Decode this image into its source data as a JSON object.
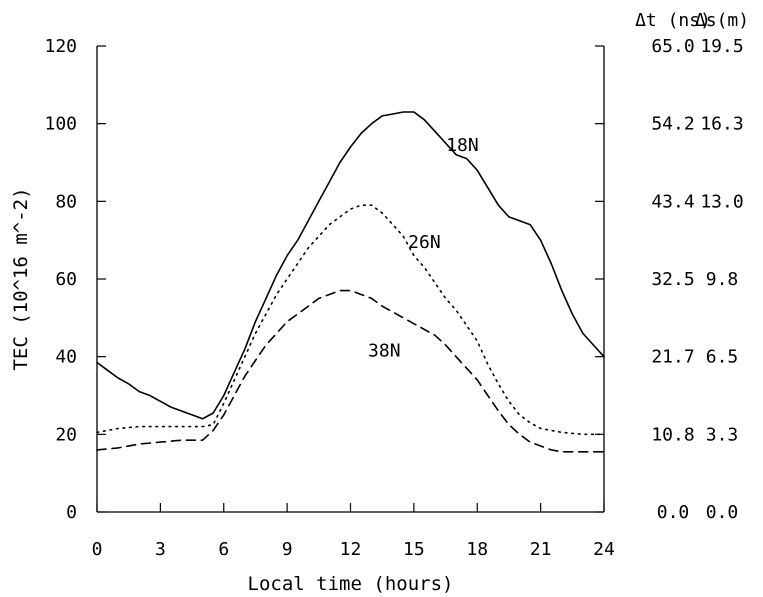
{
  "chart_data": {
    "type": "line",
    "title": "",
    "xlabel": "Local time (hours)",
    "ylabel": "TEC (10^16 m^-2)",
    "xlim": [
      0,
      24
    ],
    "ylim": [
      0,
      120
    ],
    "x_ticks": [
      0,
      3,
      6,
      9,
      12,
      15,
      18,
      21,
      24
    ],
    "y_ticks": [
      0,
      20,
      40,
      60,
      80,
      100,
      120
    ],
    "right_axes": [
      {
        "header": "Δt (ns)",
        "labels": [
          "0.0",
          "10.8",
          "21.7",
          "32.5",
          "43.4",
          "54.2",
          "65.0"
        ]
      },
      {
        "header": "Δs(m)",
        "labels": [
          "0.0",
          "3.3",
          "6.5",
          "9.8",
          "13.0",
          "16.3",
          "19.5"
        ]
      }
    ],
    "grid": false,
    "legend": "none",
    "series": [
      {
        "name": "18N",
        "style": "solid",
        "points": [
          [
            0,
            38.5
          ],
          [
            0.5,
            36.5
          ],
          [
            1,
            34.5
          ],
          [
            1.5,
            33
          ],
          [
            2,
            31
          ],
          [
            2.5,
            30
          ],
          [
            3,
            28.5
          ],
          [
            3.5,
            27
          ],
          [
            4,
            26
          ],
          [
            4.5,
            25
          ],
          [
            5,
            24
          ],
          [
            5.5,
            25.5
          ],
          [
            6,
            30
          ],
          [
            6.5,
            36
          ],
          [
            7,
            42
          ],
          [
            7.5,
            49
          ],
          [
            8,
            55
          ],
          [
            8.5,
            61
          ],
          [
            9,
            66
          ],
          [
            9.5,
            70
          ],
          [
            10,
            75
          ],
          [
            10.5,
            80
          ],
          [
            11,
            85
          ],
          [
            11.5,
            90
          ],
          [
            12,
            94
          ],
          [
            12.5,
            97.5
          ],
          [
            13,
            100
          ],
          [
            13.5,
            102
          ],
          [
            14,
            102.5
          ],
          [
            14.5,
            103
          ],
          [
            15,
            103
          ],
          [
            15.5,
            101
          ],
          [
            16,
            98
          ],
          [
            16.5,
            95
          ],
          [
            17,
            92
          ],
          [
            17.5,
            91
          ],
          [
            18,
            88
          ],
          [
            18.5,
            83.5
          ],
          [
            19,
            79
          ],
          [
            19.5,
            76
          ],
          [
            20,
            75
          ],
          [
            20.5,
            74
          ],
          [
            21,
            70
          ],
          [
            21.5,
            64
          ],
          [
            22,
            57
          ],
          [
            22.5,
            51
          ],
          [
            23,
            46
          ],
          [
            23.5,
            43
          ],
          [
            24,
            40
          ]
        ]
      },
      {
        "name": "26N",
        "style": "dotted",
        "points": [
          [
            0,
            20.5
          ],
          [
            1,
            21.5
          ],
          [
            2,
            22
          ],
          [
            3,
            22
          ],
          [
            4,
            22
          ],
          [
            5,
            22
          ],
          [
            5.5,
            22.5
          ],
          [
            6,
            28
          ],
          [
            6.5,
            34
          ],
          [
            7,
            40
          ],
          [
            7.5,
            46
          ],
          [
            8,
            51
          ],
          [
            8.5,
            56
          ],
          [
            9,
            60
          ],
          [
            9.5,
            64
          ],
          [
            10,
            68
          ],
          [
            10.5,
            71
          ],
          [
            11,
            74
          ],
          [
            11.5,
            76
          ],
          [
            12,
            78
          ],
          [
            12.5,
            79
          ],
          [
            13,
            79
          ],
          [
            13.5,
            77
          ],
          [
            14,
            74
          ],
          [
            14.5,
            71
          ],
          [
            15,
            66
          ],
          [
            15.5,
            63
          ],
          [
            16,
            59
          ],
          [
            16.5,
            55
          ],
          [
            17,
            52
          ],
          [
            17.5,
            48
          ],
          [
            18,
            44
          ],
          [
            18.5,
            38
          ],
          [
            19,
            33
          ],
          [
            19.5,
            28.5
          ],
          [
            20,
            25
          ],
          [
            20.5,
            23
          ],
          [
            21,
            21.5
          ],
          [
            22,
            20.5
          ],
          [
            23,
            20
          ],
          [
            24,
            20
          ]
        ]
      },
      {
        "name": "38N",
        "style": "dashed",
        "points": [
          [
            0,
            16
          ],
          [
            1,
            16.5
          ],
          [
            2,
            17.5
          ],
          [
            3,
            18
          ],
          [
            4,
            18.5
          ],
          [
            5,
            18.5
          ],
          [
            5.5,
            21
          ],
          [
            6,
            25
          ],
          [
            6.5,
            30
          ],
          [
            7,
            35
          ],
          [
            7.5,
            39
          ],
          [
            8,
            43
          ],
          [
            8.5,
            46
          ],
          [
            9,
            49
          ],
          [
            9.5,
            51
          ],
          [
            10,
            53
          ],
          [
            10.5,
            55
          ],
          [
            11,
            56
          ],
          [
            11.5,
            57
          ],
          [
            12,
            57
          ],
          [
            12.5,
            56
          ],
          [
            13,
            55
          ],
          [
            13.5,
            53
          ],
          [
            14,
            51.5
          ],
          [
            14.5,
            50
          ],
          [
            15,
            48.5
          ],
          [
            15.5,
            47
          ],
          [
            16,
            45.5
          ],
          [
            16.5,
            43
          ],
          [
            17,
            40
          ],
          [
            17.5,
            37
          ],
          [
            18,
            34
          ],
          [
            18.5,
            30
          ],
          [
            19,
            26
          ],
          [
            19.5,
            22.5
          ],
          [
            20,
            20
          ],
          [
            20.5,
            18
          ],
          [
            21,
            17
          ],
          [
            21.5,
            16
          ],
          [
            22,
            15.5
          ],
          [
            23,
            15.5
          ],
          [
            24,
            15.5
          ]
        ]
      }
    ]
  }
}
